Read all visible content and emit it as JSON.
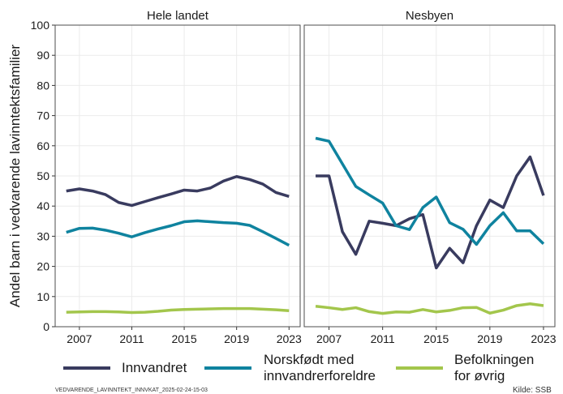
{
  "chart_data": [
    {
      "type": "line",
      "title": "Hele landet",
      "ylabel": "Andel barn i vedvarende lavinntektsfamilier",
      "x": [
        2006,
        2007,
        2008,
        2009,
        2010,
        2011,
        2012,
        2013,
        2014,
        2015,
        2016,
        2017,
        2018,
        2019,
        2020,
        2021,
        2022,
        2023
      ],
      "xlim": [
        2005.15,
        2023.85
      ],
      "xticks": [
        2007,
        2011,
        2015,
        2019,
        2023
      ],
      "ylim": [
        0,
        100
      ],
      "yticks": [
        0,
        10,
        20,
        30,
        40,
        50,
        60,
        70,
        80,
        90,
        100
      ],
      "grid": true,
      "series": [
        {
          "name": "Innvandret",
          "color": "#393b5f",
          "values": [
            45,
            45.7,
            45,
            43.8,
            41.2,
            40.2,
            41.5,
            42.8,
            44,
            45.3,
            45,
            46,
            48.3,
            49.8,
            48.8,
            47.3,
            44.5,
            43.2
          ]
        },
        {
          "name": "Norskfødt med innvandrerforeldre",
          "color": "#0f839f",
          "values": [
            31.3,
            32.6,
            32.7,
            32,
            31,
            29.8,
            31.2,
            32.4,
            33.5,
            34.8,
            35.1,
            34.8,
            34.5,
            34.3,
            33.6,
            31.5,
            29.3,
            27
          ]
        },
        {
          "name": "Befolkningen for øvrig",
          "color": "#a3c64c",
          "values": [
            4.8,
            4.9,
            5,
            5,
            4.9,
            4.7,
            4.8,
            5.1,
            5.5,
            5.7,
            5.8,
            5.9,
            6,
            6,
            6,
            5.8,
            5.6,
            5.3
          ]
        }
      ]
    },
    {
      "type": "line",
      "title": "Nesbyen",
      "x": [
        2006,
        2007,
        2008,
        2009,
        2010,
        2011,
        2012,
        2013,
        2014,
        2015,
        2016,
        2017,
        2018,
        2019,
        2020,
        2021,
        2022,
        2023
      ],
      "xlim": [
        2005.15,
        2023.85
      ],
      "xticks": [
        2007,
        2011,
        2015,
        2019,
        2023
      ],
      "ylim": [
        0,
        100
      ],
      "yticks": [
        0,
        10,
        20,
        30,
        40,
        50,
        60,
        70,
        80,
        90,
        100
      ],
      "grid": true,
      "series": [
        {
          "color": "#393b5f",
          "values": [
            50,
            50,
            31.5,
            24,
            35,
            34.3,
            33.5,
            35.8,
            37.2,
            19.5,
            26,
            21.2,
            33.5,
            42,
            39.5,
            50,
            56.3,
            43.5
          ]
        },
        {
          "color": "#0f839f",
          "values": [
            62.5,
            61.5,
            54,
            46.5,
            43.7,
            41,
            33.5,
            32.2,
            39.5,
            43,
            34.5,
            32.3,
            27.3,
            33.5,
            37.8,
            31.8,
            31.8,
            27.5
          ]
        },
        {
          "color": "#a3c64c",
          "values": [
            6.8,
            6.3,
            5.7,
            6.3,
            5,
            4.4,
            4.9,
            4.8,
            5.7,
            4.9,
            5.4,
            6.3,
            6.4,
            4.5,
            5.5,
            7,
            7.6,
            7
          ]
        }
      ]
    }
  ],
  "caption": "VEDVARENDE_LAVINNTEKT_INNVKAT_2025-02-24-15-03",
  "source": "Kilde: SSB"
}
